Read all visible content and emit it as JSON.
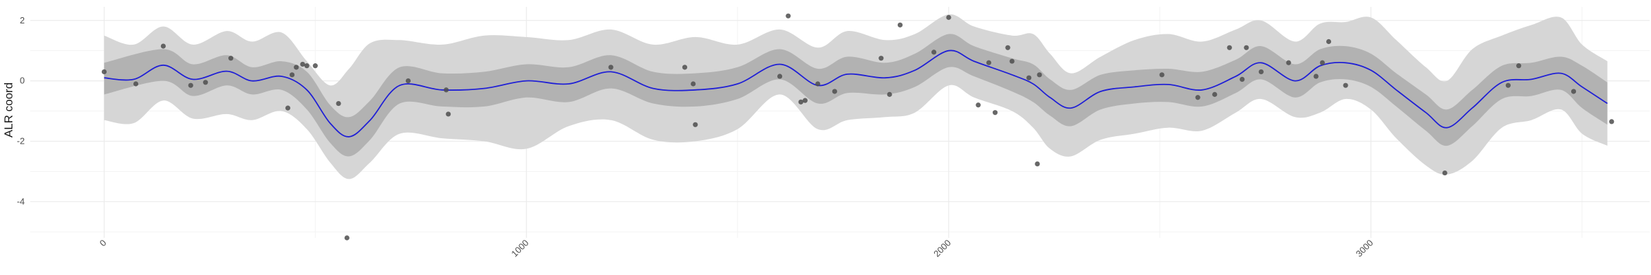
{
  "chart_data": {
    "type": "line",
    "title": "",
    "xlabel": "",
    "ylabel": "ALR coord",
    "xlim": [
      -175,
      3660
    ],
    "ylim": [
      -5.2,
      2.45
    ],
    "x_ticks": [
      0,
      1000,
      2000,
      3000
    ],
    "x_tick_labels": [
      "0",
      "1000",
      "2000",
      "3000"
    ],
    "y_ticks": [
      -4,
      -2,
      0,
      2
    ],
    "y_tick_labels": [
      "-4",
      "-2",
      "0",
      "2"
    ],
    "grid": true,
    "legend": "none",
    "colors": {
      "mean_line": "#1f1fd6",
      "inner_band": "#b2b2b2",
      "outer_band": "#d6d6d6",
      "points": "#4d4d4d",
      "grid_major": "#ebebeb",
      "grid_minor": "#f3f3f3"
    },
    "mean_curve": {
      "x": [
        0,
        70,
        140,
        210,
        290,
        350,
        420,
        480,
        535,
        580,
        630,
        700,
        800,
        900,
        1000,
        1100,
        1200,
        1300,
        1400,
        1500,
        1600,
        1690,
        1760,
        1850,
        1920,
        2000,
        2060,
        2150,
        2200,
        2240,
        2290,
        2360,
        2440,
        2520,
        2600,
        2680,
        2740,
        2820,
        2880,
        2940,
        3000,
        3060,
        3130,
        3180,
        3240,
        3310,
        3380,
        3450,
        3500,
        3560
      ],
      "y": [
        0.1,
        0.05,
        0.52,
        0.05,
        0.32,
        0.0,
        0.15,
        -0.3,
        -1.4,
        -1.85,
        -1.3,
        -0.15,
        -0.3,
        -0.25,
        0.0,
        -0.1,
        0.3,
        -0.25,
        -0.3,
        -0.1,
        0.55,
        -0.15,
        0.22,
        0.1,
        0.35,
        1.0,
        0.65,
        0.2,
        -0.1,
        -0.55,
        -0.9,
        -0.35,
        -0.2,
        -0.12,
        -0.3,
        0.15,
        0.6,
        0.0,
        0.5,
        0.6,
        0.35,
        -0.3,
        -1.05,
        -1.55,
        -0.9,
        -0.05,
        0.05,
        0.25,
        -0.2,
        -0.75
      ]
    },
    "inner_band": {
      "x": [
        0,
        140,
        210,
        290,
        350,
        420,
        480,
        535,
        580,
        630,
        700,
        800,
        900,
        1000,
        1100,
        1200,
        1300,
        1400,
        1500,
        1600,
        1690,
        1760,
        1850,
        1920,
        2000,
        2060,
        2150,
        2200,
        2240,
        2290,
        2360,
        2440,
        2520,
        2600,
        2680,
        2740,
        2820,
        2880,
        2940,
        3000,
        3060,
        3130,
        3180,
        3240,
        3310,
        3380,
        3450,
        3500,
        3560
      ],
      "lower": [
        -0.45,
        0.0,
        -0.5,
        -0.15,
        -0.45,
        -0.3,
        -0.95,
        -2.05,
        -2.5,
        -1.95,
        -0.75,
        -0.85,
        -0.85,
        -0.55,
        -0.7,
        -0.25,
        -0.75,
        -0.85,
        -0.6,
        0.05,
        -0.75,
        -0.4,
        -0.45,
        -0.2,
        0.45,
        0.15,
        -0.35,
        -0.7,
        -1.15,
        -1.5,
        -0.95,
        -0.75,
        -0.7,
        -0.85,
        -0.4,
        0.05,
        -0.55,
        -0.05,
        0.05,
        -0.2,
        -0.85,
        -1.65,
        -2.15,
        -1.5,
        -0.6,
        -0.5,
        -0.3,
        -0.9,
        -1.45
      ],
      "upper": [
        0.6,
        1.05,
        0.55,
        0.85,
        0.45,
        0.65,
        0.3,
        -0.8,
        -1.2,
        -0.65,
        0.45,
        0.25,
        0.3,
        0.55,
        0.45,
        0.85,
        0.3,
        0.25,
        0.45,
        1.05,
        0.4,
        0.8,
        0.6,
        0.9,
        1.55,
        1.15,
        0.75,
        0.55,
        0.05,
        -0.3,
        0.2,
        0.35,
        0.4,
        0.3,
        0.7,
        1.15,
        0.55,
        1.05,
        1.15,
        0.9,
        0.25,
        -0.45,
        -0.95,
        -0.3,
        0.5,
        0.6,
        0.8,
        0.5,
        -0.05
      ]
    },
    "outer_band": {
      "x": [
        0,
        70,
        140,
        210,
        290,
        350,
        420,
        480,
        535,
        580,
        630,
        700,
        800,
        900,
        1000,
        1100,
        1200,
        1300,
        1400,
        1500,
        1600,
        1690,
        1760,
        1850,
        1920,
        2000,
        2060,
        2150,
        2200,
        2240,
        2290,
        2360,
        2440,
        2520,
        2600,
        2680,
        2740,
        2820,
        2880,
        2940,
        3000,
        3060,
        3130,
        3180,
        3240,
        3310,
        3380,
        3450,
        3500,
        3560
      ],
      "lower": [
        -1.3,
        -1.4,
        -0.65,
        -1.25,
        -1.1,
        -1.3,
        -1.0,
        -1.6,
        -2.7,
        -3.25,
        -2.7,
        -1.75,
        -1.9,
        -2.0,
        -2.25,
        -1.5,
        -1.3,
        -1.95,
        -2.0,
        -1.6,
        -0.45,
        -1.6,
        -1.3,
        -1.2,
        -1.05,
        -0.15,
        -0.55,
        -1.0,
        -1.55,
        -2.25,
        -2.5,
        -1.95,
        -1.75,
        -1.55,
        -1.65,
        -1.05,
        -0.6,
        -1.2,
        -1.05,
        -0.6,
        -0.95,
        -1.9,
        -2.8,
        -3.1,
        -2.65,
        -1.55,
        -1.3,
        -0.95,
        -1.75,
        -2.15
      ],
      "upper": [
        1.5,
        1.2,
        1.8,
        1.2,
        1.65,
        1.3,
        1.6,
        0.65,
        -0.15,
        0.4,
        1.25,
        1.35,
        1.2,
        1.5,
        1.45,
        1.35,
        1.7,
        1.2,
        1.45,
        1.2,
        1.7,
        1.1,
        1.65,
        1.35,
        1.55,
        2.2,
        1.8,
        1.5,
        1.55,
        0.9,
        0.25,
        0.8,
        1.35,
        1.55,
        1.3,
        1.7,
        2.0,
        1.3,
        1.9,
        1.95,
        2.1,
        1.35,
        0.45,
        0.0,
        1.05,
        1.5,
        1.85,
        2.1,
        1.2,
        0.65
      ]
    },
    "points": {
      "x": [
        0,
        75,
        140,
        205,
        240,
        300,
        435,
        445,
        455,
        470,
        480,
        500,
        555,
        575,
        720,
        810,
        815,
        1200,
        1375,
        1395,
        1400,
        1600,
        1620,
        1650,
        1660,
        1690,
        1730,
        1840,
        1860,
        1885,
        1965,
        2000,
        2070,
        2095,
        2110,
        2140,
        2150,
        2190,
        2210,
        2215,
        2505,
        2590,
        2630,
        2665,
        2695,
        2705,
        2740,
        2805,
        2870,
        2885,
        2900,
        2940,
        3175,
        3325,
        3350,
        3480,
        3570
      ],
      "y": [
        0.3,
        -0.1,
        1.15,
        -0.15,
        -0.05,
        0.75,
        -0.9,
        0.2,
        0.45,
        0.55,
        0.5,
        0.5,
        -0.75,
        -5.2,
        0.0,
        -0.3,
        -1.1,
        0.45,
        0.45,
        -0.1,
        -1.45,
        0.15,
        2.15,
        -0.7,
        -0.65,
        -0.1,
        -0.35,
        0.75,
        -0.45,
        1.85,
        0.95,
        2.1,
        -0.8,
        0.6,
        -1.05,
        1.1,
        0.65,
        0.1,
        -2.75,
        0.2,
        0.2,
        -0.55,
        -0.45,
        1.1,
        0.05,
        1.1,
        0.3,
        0.6,
        0.15,
        0.6,
        1.3,
        -0.15,
        -3.05,
        -0.15,
        0.5,
        -0.35,
        -1.35
      ]
    }
  }
}
